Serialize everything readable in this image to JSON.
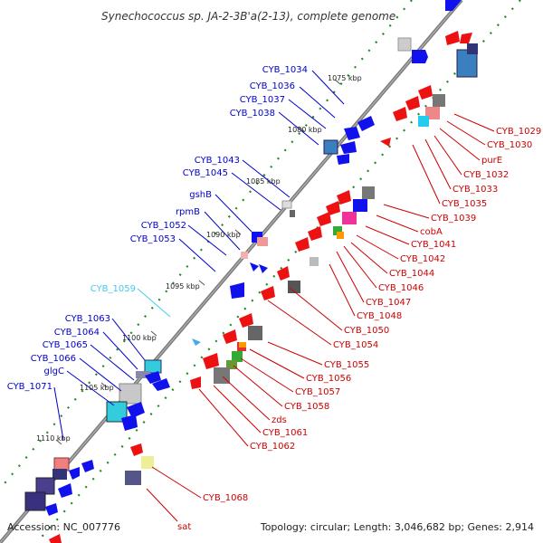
{
  "title": "Synechococcus sp. JA-2-3B'a(2-13), complete genome",
  "footer": {
    "accession": "Accession: NC_007776",
    "summary": "Topology: circular; Length: 3,046,682 bp; Genes: 2,914"
  },
  "ticks": [
    "1075 kbp",
    "1080 kbp",
    "1085 kbp",
    "1090 kbp",
    "1095 kbp",
    "1100 kbp",
    "1105 kbp",
    "1110 kbp"
  ],
  "left_labels": [
    {
      "text": "CYB_1034",
      "color": "#0000cc"
    },
    {
      "text": "CYB_1036",
      "color": "#0000cc"
    },
    {
      "text": "CYB_1037",
      "color": "#0000cc"
    },
    {
      "text": "CYB_1038",
      "color": "#0000cc"
    },
    {
      "text": "CYB_1043",
      "color": "#0000cc"
    },
    {
      "text": "CYB_1045",
      "color": "#0000cc"
    },
    {
      "text": "gshB",
      "color": "#0000cc"
    },
    {
      "text": "rpmB",
      "color": "#0000cc"
    },
    {
      "text": "CYB_1052",
      "color": "#0000cc"
    },
    {
      "text": "CYB_1053",
      "color": "#0000cc"
    },
    {
      "text": "CYB_1059",
      "color": "#44ccee"
    },
    {
      "text": "CYB_1063",
      "color": "#0000cc"
    },
    {
      "text": "CYB_1064",
      "color": "#0000cc"
    },
    {
      "text": "CYB_1065",
      "color": "#0000cc"
    },
    {
      "text": "CYB_1066",
      "color": "#0000cc"
    },
    {
      "text": "glgC",
      "color": "#0000cc"
    },
    {
      "text": "CYB_1071",
      "color": "#0000cc"
    }
  ],
  "right_labels": [
    {
      "text": "CYB_1029"
    },
    {
      "text": "CYB_1030"
    },
    {
      "text": "purE"
    },
    {
      "text": "CYB_1032"
    },
    {
      "text": "CYB_1033"
    },
    {
      "text": "CYB_1035"
    },
    {
      "text": "CYB_1039"
    },
    {
      "text": "cobA"
    },
    {
      "text": "CYB_1041"
    },
    {
      "text": "CYB_1042"
    },
    {
      "text": "CYB_1044"
    },
    {
      "text": "CYB_1046"
    },
    {
      "text": "CYB_1047"
    },
    {
      "text": "CYB_1048"
    },
    {
      "text": "CYB_1050"
    },
    {
      "text": "CYB_1054"
    },
    {
      "text": "CYB_1055"
    },
    {
      "text": "CYB_1056"
    },
    {
      "text": "CYB_1057"
    },
    {
      "text": "CYB_1058"
    },
    {
      "text": "zds"
    },
    {
      "text": "CYB_1061"
    },
    {
      "text": "CYB_1062"
    },
    {
      "text": "CYB_1068"
    },
    {
      "text": "sat"
    }
  ],
  "colors": {
    "forward_gene": "#ee1111",
    "reverse_gene": "#1111ee",
    "backbone": "#666666",
    "tick_dots": "#228822",
    "right_label": "#cc0000"
  }
}
